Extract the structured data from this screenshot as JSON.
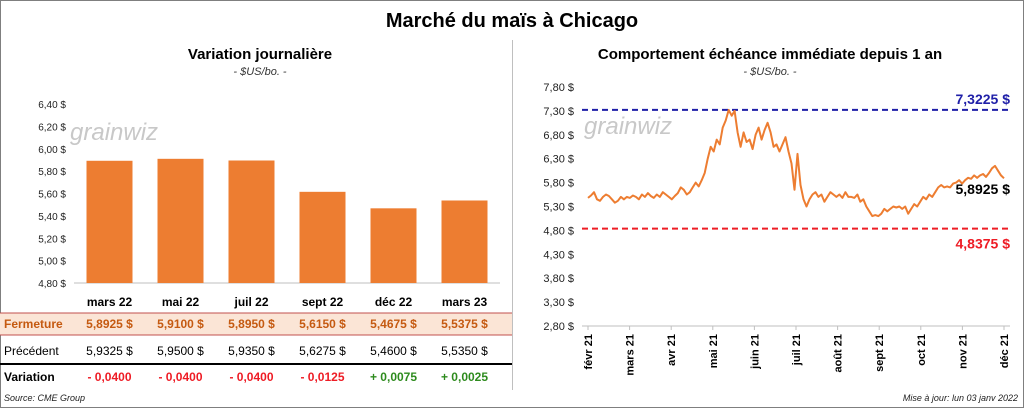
{
  "title": "Marché du maïs à Chicago",
  "source": "Source: CME Group",
  "updated": "Mise à jour: lun 03 janv 2022",
  "watermark": "grainwiz",
  "colors": {
    "bar": "#ed7d31",
    "line": "#ed7d31",
    "high": "#1f1fa8",
    "low": "#ee1c25",
    "negative": "#ee1c25",
    "positive": "#2e8b1e",
    "row_highlight": "#fbe5d6",
    "row_highlight_label": "#c55a11"
  },
  "chart_data": [
    {
      "type": "bar",
      "title": "Variation journalière",
      "subtitle": "- $US/bo. -",
      "categories": [
        "mars 22",
        "mai 22",
        "juil 22",
        "sept 22",
        "déc 22",
        "mars 23"
      ],
      "values": [
        5.8925,
        5.91,
        5.895,
        5.615,
        5.4675,
        5.5375
      ],
      "ylim": [
        4.8,
        6.4
      ],
      "yticks": [
        "6,40 $",
        "6,20 $",
        "6,00 $",
        "5,80 $",
        "5,60 $",
        "5,40 $",
        "5,20 $",
        "5,00 $",
        "4,80 $"
      ],
      "grid": false,
      "table": {
        "rows": [
          {
            "label": "Fermeture",
            "values": [
              "5,8925  $",
              "5,9100  $",
              "5,8950  $",
              "5,6150  $",
              "5,4675  $",
              "5,5375  $"
            ]
          },
          {
            "label": "Précédent",
            "values": [
              "5,9325  $",
              "5,9500  $",
              "5,9350  $",
              "5,6275  $",
              "5,4600  $",
              "5,5350  $"
            ]
          },
          {
            "label": "Variation",
            "values": [
              "- 0,0400",
              "- 0,0400",
              "- 0,0400",
              "- 0,0125",
              "+ 0,0075",
              "+ 0,0025"
            ]
          }
        ]
      }
    },
    {
      "type": "line",
      "title": "Comportement  échéance immédiate depuis 1 an",
      "subtitle": "- $US/bo. -",
      "ylim": [
        2.8,
        7.8
      ],
      "yticks": [
        "7,80 $",
        "7,30 $",
        "6,80 $",
        "6,30 $",
        "5,80 $",
        "5,30 $",
        "4,80 $",
        "4,30 $",
        "3,80 $",
        "3,30 $",
        "2,80 $"
      ],
      "xticks": [
        "févr 21",
        "mars 21",
        "avr 21",
        "mai 21",
        "juin 21",
        "juil 21",
        "août 21",
        "sept 21",
        "oct 21",
        "nov 21",
        "déc 21"
      ],
      "high": {
        "value": 7.3225,
        "label": "7,3225 $"
      },
      "low": {
        "value": 4.8375,
        "label": "4,8375 $"
      },
      "last": {
        "value": 5.8925,
        "label": "5,8925 $"
      },
      "series": [
        {
          "values": [
            [
              0,
              5.48
            ],
            [
              1,
              5.53
            ],
            [
              2,
              5.6
            ],
            [
              3,
              5.45
            ],
            [
              4,
              5.42
            ],
            [
              5,
              5.5
            ],
            [
              6,
              5.55
            ],
            [
              7,
              5.52
            ],
            [
              8,
              5.45
            ],
            [
              9,
              5.38
            ],
            [
              10,
              5.42
            ],
            [
              11,
              5.5
            ],
            [
              12,
              5.45
            ],
            [
              13,
              5.5
            ],
            [
              14,
              5.48
            ],
            [
              15,
              5.53
            ],
            [
              16,
              5.5
            ],
            [
              17,
              5.45
            ],
            [
              18,
              5.55
            ],
            [
              19,
              5.5
            ],
            [
              20,
              5.58
            ],
            [
              21,
              5.52
            ],
            [
              22,
              5.48
            ],
            [
              23,
              5.55
            ],
            [
              24,
              5.5
            ],
            [
              25,
              5.6
            ],
            [
              26,
              5.55
            ],
            [
              27,
              5.5
            ],
            [
              28,
              5.45
            ],
            [
              29,
              5.52
            ],
            [
              30,
              5.58
            ],
            [
              31,
              5.7
            ],
            [
              32,
              5.65
            ],
            [
              33,
              5.55
            ],
            [
              34,
              5.6
            ],
            [
              35,
              5.7
            ],
            [
              36,
              5.8
            ],
            [
              37,
              5.72
            ],
            [
              38,
              5.85
            ],
            [
              39,
              6.0
            ],
            [
              40,
              6.3
            ],
            [
              41,
              6.55
            ],
            [
              42,
              6.45
            ],
            [
              43,
              6.7
            ],
            [
              44,
              6.6
            ],
            [
              45,
              6.95
            ],
            [
              46,
              7.1
            ],
            [
              47,
              7.32
            ],
            [
              48,
              7.2
            ],
            [
              49,
              7.3
            ],
            [
              50,
              6.85
            ],
            [
              51,
              6.55
            ],
            [
              52,
              6.85
            ],
            [
              53,
              6.65
            ],
            [
              54,
              6.7
            ],
            [
              55,
              6.5
            ],
            [
              56,
              6.8
            ],
            [
              57,
              6.95
            ],
            [
              58,
              6.7
            ],
            [
              59,
              6.9
            ],
            [
              60,
              7.05
            ],
            [
              61,
              6.85
            ],
            [
              62,
              6.55
            ],
            [
              63,
              6.6
            ],
            [
              64,
              6.45
            ],
            [
              65,
              6.6
            ],
            [
              66,
              6.75
            ],
            [
              67,
              6.45
            ],
            [
              68,
              6.2
            ],
            [
              69,
              5.65
            ],
            [
              70,
              6.4
            ],
            [
              71,
              5.75
            ],
            [
              72,
              5.45
            ],
            [
              73,
              5.3
            ],
            [
              74,
              5.45
            ],
            [
              75,
              5.55
            ],
            [
              76,
              5.6
            ],
            [
              77,
              5.5
            ],
            [
              78,
              5.55
            ],
            [
              79,
              5.4
            ],
            [
              80,
              5.5
            ],
            [
              81,
              5.6
            ],
            [
              82,
              5.55
            ],
            [
              83,
              5.5
            ],
            [
              84,
              5.55
            ],
            [
              85,
              5.48
            ],
            [
              86,
              5.6
            ],
            [
              87,
              5.5
            ],
            [
              88,
              5.5
            ],
            [
              89,
              5.48
            ],
            [
              90,
              5.55
            ],
            [
              91,
              5.4
            ],
            [
              92,
              5.45
            ],
            [
              93,
              5.3
            ],
            [
              94,
              5.2
            ],
            [
              95,
              5.1
            ],
            [
              96,
              5.12
            ],
            [
              97,
              5.1
            ],
            [
              98,
              5.15
            ],
            [
              99,
              5.25
            ],
            [
              100,
              5.2
            ],
            [
              101,
              5.25
            ],
            [
              102,
              5.3
            ],
            [
              103,
              5.28
            ],
            [
              104,
              5.3
            ],
            [
              105,
              5.25
            ],
            [
              106,
              5.3
            ],
            [
              107,
              5.15
            ],
            [
              108,
              5.25
            ],
            [
              109,
              5.35
            ],
            [
              110,
              5.3
            ],
            [
              111,
              5.4
            ],
            [
              112,
              5.5
            ],
            [
              113,
              5.45
            ],
            [
              114,
              5.55
            ],
            [
              115,
              5.5
            ],
            [
              116,
              5.6
            ],
            [
              117,
              5.7
            ],
            [
              118,
              5.75
            ],
            [
              119,
              5.7
            ],
            [
              120,
              5.72
            ],
            [
              121,
              5.7
            ],
            [
              122,
              5.78
            ],
            [
              123,
              5.8
            ],
            [
              124,
              5.85
            ],
            [
              125,
              5.78
            ],
            [
              126,
              5.85
            ],
            [
              127,
              5.9
            ],
            [
              128,
              5.88
            ],
            [
              129,
              5.95
            ],
            [
              130,
              5.9
            ],
            [
              131,
              5.95
            ],
            [
              132,
              5.98
            ],
            [
              133,
              5.92
            ],
            [
              134,
              6.0
            ],
            [
              135,
              6.1
            ],
            [
              136,
              6.15
            ],
            [
              137,
              6.05
            ],
            [
              138,
              5.95
            ],
            [
              139,
              5.89
            ]
          ]
        }
      ]
    }
  ]
}
